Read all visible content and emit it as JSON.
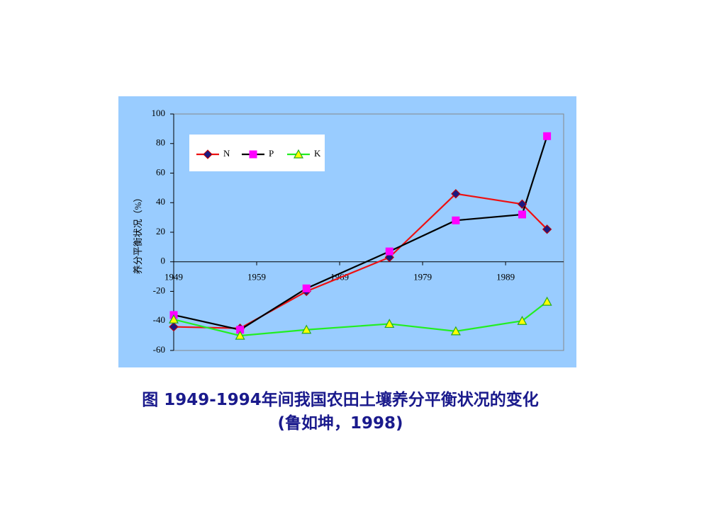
{
  "chart_data": {
    "type": "line",
    "title": "图 1949-1994年间我国农田土壤养分平衡状况的变化",
    "subtitle": "(鲁如坤，1998)",
    "y_label": "养分平衡状况（%）",
    "x": [
      1949,
      1957,
      1965,
      1975,
      1983,
      1991,
      1994
    ],
    "xlim": [
      1949,
      1996
    ],
    "xticks": [
      1949,
      1959,
      1969,
      1979,
      1989
    ],
    "ylim": [
      -60,
      100
    ],
    "yticks": [
      -60,
      -40,
      -20,
      0,
      20,
      40,
      60,
      80,
      100
    ],
    "legend": "upper left",
    "series": [
      {
        "name": "N",
        "color": "#ee1111",
        "marker": "diamond",
        "marker_color": "#1a1a80",
        "values": [
          -44,
          -45,
          -20,
          3,
          46,
          39,
          22
        ]
      },
      {
        "name": "P",
        "color": "#000000",
        "marker": "square",
        "marker_color": "#ff00ff",
        "values": [
          -36,
          -46,
          -18,
          7,
          28,
          32,
          85
        ]
      },
      {
        "name": "K",
        "color": "#22ee22",
        "marker": "triangle",
        "marker_color": "#ffff00",
        "values": [
          -39,
          -50,
          -46,
          -42,
          -47,
          -40,
          -27
        ]
      }
    ]
  }
}
